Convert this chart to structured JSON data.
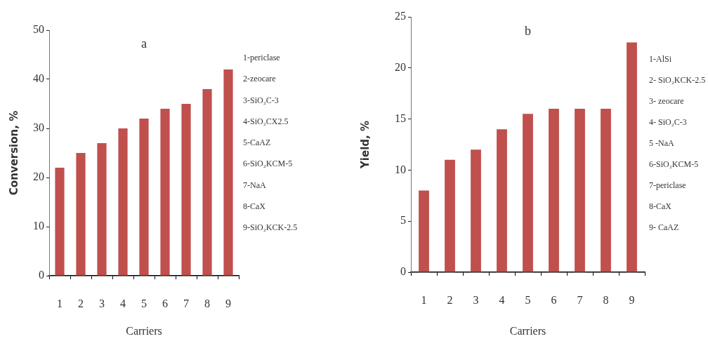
{
  "chart_data": [
    {
      "type": "bar",
      "title": "a",
      "xlabel": "Carriers",
      "ylabel": "Conversion, %",
      "categories": [
        "1",
        "2",
        "3",
        "4",
        "5",
        "6",
        "7",
        "8",
        "9"
      ],
      "values": [
        22,
        25,
        27,
        30,
        32,
        34,
        35,
        38,
        42
      ],
      "color": "#c0504d",
      "ylim": [
        0,
        50
      ],
      "yticks": [
        0,
        10,
        20,
        30,
        40,
        50
      ],
      "annotations": [
        "1-periclase",
        "2-zeocare",
        "3-SiO₂C-3",
        "4-SiO₂CX2.5",
        "5-CaAZ",
        "6-SiO₂KCM-5",
        "7-NaA",
        "8-CaX",
        "9-SiO₂KCK-2.5"
      ]
    },
    {
      "type": "bar",
      "title": "b",
      "xlabel": "Carriers",
      "ylabel": "Yield, %",
      "categories": [
        "1",
        "2",
        "3",
        "4",
        "5",
        "6",
        "7",
        "8",
        "9"
      ],
      "values": [
        8,
        11,
        12,
        14,
        15.5,
        16,
        16,
        16,
        22.5
      ],
      "color": "#c0504d",
      "ylim": [
        0,
        25
      ],
      "yticks": [
        0,
        5,
        10,
        15,
        20,
        25
      ],
      "annotations": [
        "1-AlSi",
        "2- SiO₂KCK-2.5",
        "3- zeocare",
        "4- SiO₂C-3",
        "5 -NaA",
        "6-SiO₂KCM-5",
        "7-periclase",
        "8-CaX",
        "9- CaAZ"
      ]
    }
  ]
}
